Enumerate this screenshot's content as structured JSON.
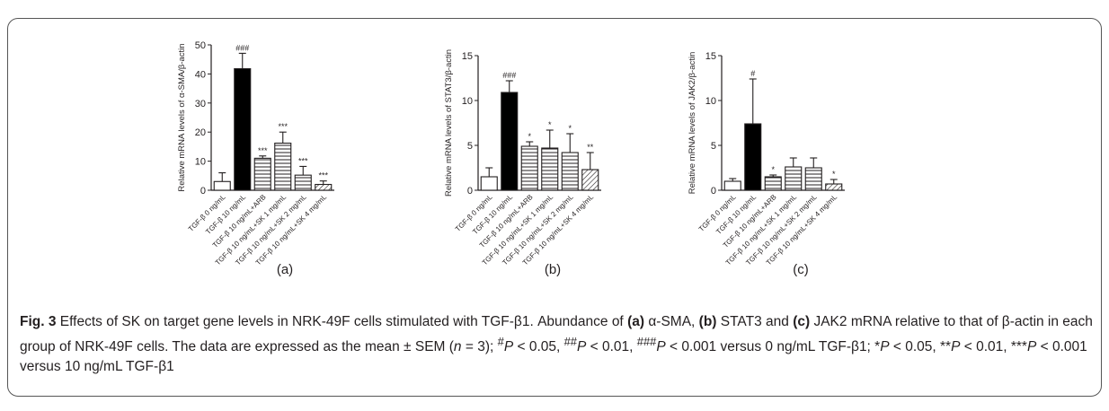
{
  "chart_data": [
    {
      "type": "bar",
      "panel_label": "(a)",
      "ylabel": "Relative mRNA levels of α-SMA/β-actin",
      "ylim": [
        0,
        50
      ],
      "yticks": [
        0,
        10,
        20,
        30,
        40,
        50
      ],
      "categories": [
        "TGF-β 0 ng/mL",
        "TGF-β 10 ng/mL",
        "TGF-β 10 ng/mL+ARB",
        "TGF-β 10 ng/mL+SK 1 mg/mL",
        "TGF-β 10 ng/mL+SK 2 mg/mL",
        "TGF-β 10 ng/mL+SK 4 mg/mL"
      ],
      "values": [
        3.0,
        41.8,
        11.0,
        16.2,
        5.2,
        2.0
      ],
      "errors": [
        3.0,
        5.3,
        0.8,
        3.8,
        3.0,
        1.2
      ],
      "significance": [
        "",
        "###",
        "***",
        "***",
        "***",
        "***"
      ]
    },
    {
      "type": "bar",
      "panel_label": "(b)",
      "ylabel": "Relative mRNA levels of STAT3/β-actin",
      "ylim": [
        0,
        15
      ],
      "yticks": [
        0,
        5,
        10,
        15
      ],
      "categories": [
        "TGF-β 0 ng/mL",
        "TGF-β 10 ng/mL",
        "TGF-β 10 ng/mL+ARB",
        "TGF-β 10 ng/mL+SK 1 mg/mL",
        "TGF-β 10 ng/mL+SK 2 mg/mL",
        "TGF-β 10 ng/mL+SK 4 mg/mL"
      ],
      "values": [
        1.5,
        10.9,
        4.9,
        4.7,
        4.2,
        2.3
      ],
      "errors": [
        1.0,
        1.3,
        0.5,
        2.0,
        2.1,
        1.9
      ],
      "significance": [
        "",
        "###",
        "*",
        "*",
        "*",
        "**"
      ]
    },
    {
      "type": "bar",
      "panel_label": "(c)",
      "ylabel": "Relative mRNA levels of JAK2/β-actin",
      "ylim": [
        0,
        15
      ],
      "yticks": [
        0,
        5,
        10,
        15
      ],
      "categories": [
        "TGF-β 0 ng/mL",
        "TGF-β 10 ng/mL",
        "TGF-β 10 ng/mL+ARB",
        "TGF-β 10 ng/mL+SK 1 mg/mL",
        "TGF-β 10 ng/mL+SK 2 mg/mL",
        "TGF-β 10 ng/mL+SK 4 mg/mL"
      ],
      "values": [
        1.0,
        7.4,
        1.5,
        2.6,
        2.5,
        0.7
      ],
      "errors": [
        0.3,
        5.0,
        0.2,
        1.0,
        1.1,
        0.5
      ],
      "significance": [
        "",
        "#",
        "*",
        "",
        "",
        "*"
      ]
    }
  ],
  "caption": {
    "fig_label": "Fig. 3",
    "title": "Effects of SK on target gene levels in NRK-49F cells stimulated with TGF-β1.",
    "part1": "Abundance of",
    "a_label": "(a)",
    "part2": "α-SMA,",
    "b_label": "(b)",
    "part3": "STAT3 and",
    "c_label": "(c)",
    "part4": "JAK2 mRNA relative to that of β-actin in each group of NRK-49F cells. The data are expressed as the mean ± SEM (",
    "n_var": "n",
    "part5": "= 3);",
    "sup1": "#",
    "p1": "P",
    "part6": "< 0.05,",
    "sup2": "##",
    "p2": "P",
    "part7": "< 0.01,",
    "sup3": "###",
    "p3": "P",
    "part8": "< 0.001 versus 0 ng/mL TGF-β1; *",
    "p4": "P",
    "part9": "< 0.05, **",
    "p5": "P",
    "part10": "< 0.01, ***",
    "p6": "P",
    "part11": "< 0.001 versus 10 ng/mL TGF-β1"
  }
}
